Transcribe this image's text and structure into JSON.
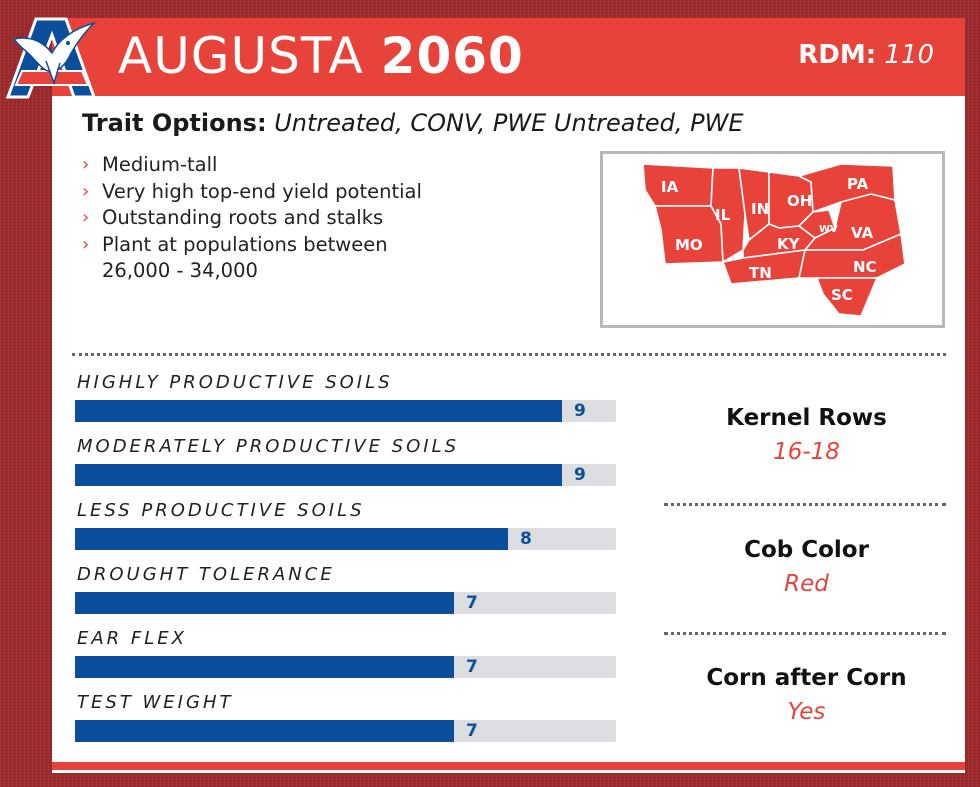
{
  "brand": {
    "logo_icon": "eagle-shield-logo-icon",
    "colors": {
      "red": "#e8433b",
      "blue": "#0b4f9c"
    }
  },
  "header": {
    "series": "AUGUSTA",
    "number": "2060",
    "rdm_label": "RDM:",
    "rdm_value": "110"
  },
  "traits": {
    "label": "Trait Options:",
    "value": "Untreated, CONV, PWE Untreated, PWE"
  },
  "features": [
    {
      "text": "Medium-tall"
    },
    {
      "text": "Very high top-end yield potential"
    },
    {
      "text": "Outstanding roots and stalks"
    },
    {
      "text": "Plant at populations between 26,000 - 34,000"
    }
  ],
  "map": {
    "icon": "regional-states-map",
    "states": [
      "IA",
      "IL",
      "IN",
      "OH",
      "PA",
      "MO",
      "KY",
      "WV",
      "VA",
      "TN",
      "NC",
      "SC"
    ]
  },
  "ratings": {
    "scale_max": 10,
    "items": [
      {
        "label": "HIGHLY PRODUCTIVE SOILS",
        "value": 9
      },
      {
        "label": "MODERATELY PRODUCTIVE SOILS",
        "value": 9
      },
      {
        "label": "LESS PRODUCTIVE SOILS",
        "value": 8
      },
      {
        "label": "DROUGHT TOLERANCE",
        "value": 7
      },
      {
        "label": "EAR FLEX",
        "value": 7
      },
      {
        "label": "TEST WEIGHT",
        "value": 7
      }
    ]
  },
  "specs": [
    {
      "label": "Kernel Rows",
      "value": "16-18"
    },
    {
      "label": "Cob Color",
      "value": "Red"
    },
    {
      "label": "Corn after Corn",
      "value": "Yes"
    }
  ]
}
